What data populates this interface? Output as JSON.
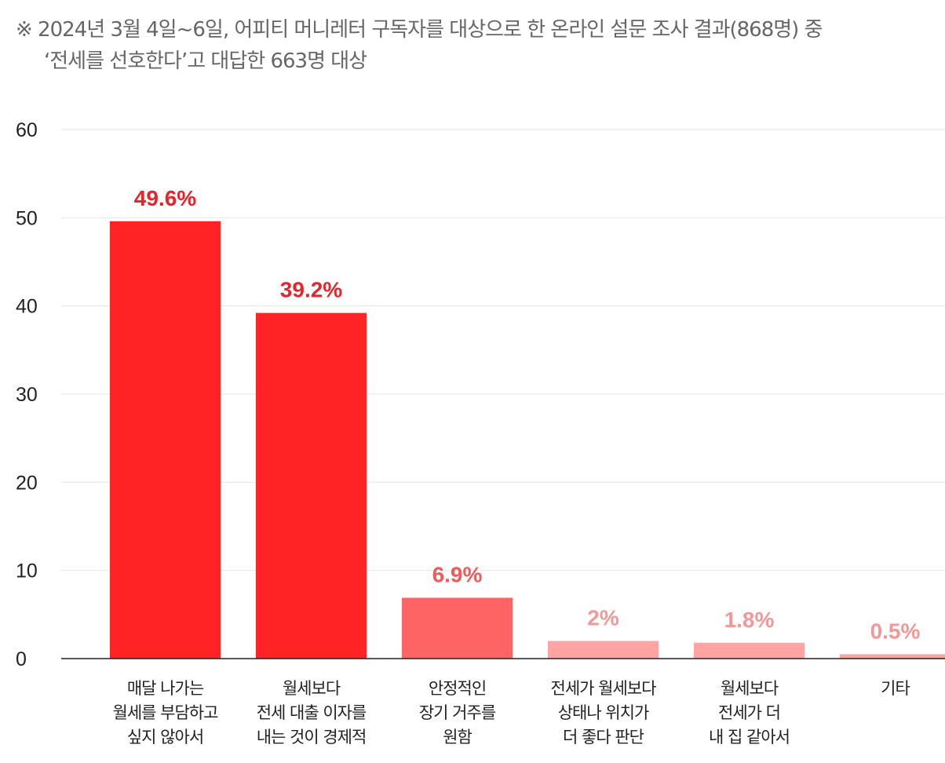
{
  "note": {
    "line1": "※ 2024년 3월 4일~6일, 어피티 머니레터 구독자를 대상으로 한 온라인 설문 조사 결과(868명) 중",
    "line2": "‘전세를 선호한다’고 대답한 663명 대상"
  },
  "colors": {
    "strong": "#ff2326",
    "medium": "#ff6464",
    "light": "#ffa3a3",
    "strong_label": "#e8242a",
    "medium_label": "#ee5b5b",
    "light_label": "#f59797",
    "grid": "#e6e6e6",
    "axis": "#222222",
    "tick_text": "#222222"
  },
  "chart_data": {
    "type": "bar",
    "categories": [
      [
        "매달 나가는",
        "월세를 부담하고",
        "싶지 않아서"
      ],
      [
        "월세보다",
        "전세 대출 이자를",
        "내는 것이 경제적"
      ],
      [
        "안정적인",
        "장기 거주를",
        "원함"
      ],
      [
        "전세가 월세보다",
        "상태나 위치가",
        "더 좋다 판단"
      ],
      [
        "월세보다",
        "전세가 더",
        "내 집 같아서"
      ],
      [
        "기타"
      ]
    ],
    "values": [
      49.6,
      39.2,
      6.9,
      2,
      1.8,
      0.5
    ],
    "value_labels": [
      "49.6%",
      "39.2%",
      "6.9%",
      "2%",
      "1.8%",
      "0.5%"
    ],
    "bar_tones": [
      "strong",
      "strong",
      "medium",
      "light",
      "light",
      "light"
    ],
    "ylim": [
      0,
      60
    ],
    "yticks": [
      0,
      10,
      20,
      30,
      40,
      50,
      60
    ],
    "grid": true,
    "legend": "none"
  }
}
